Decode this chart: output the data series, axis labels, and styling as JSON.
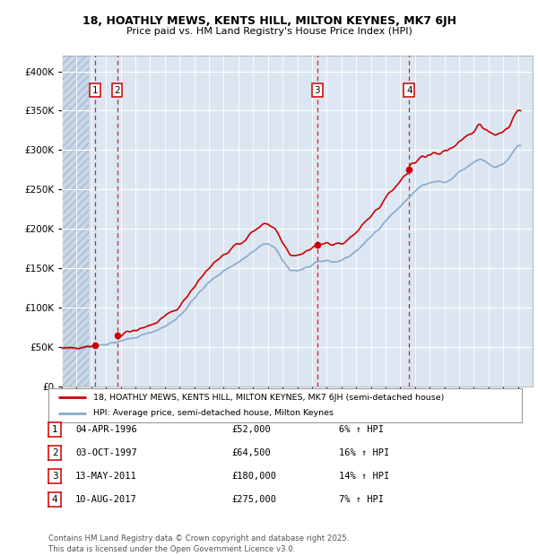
{
  "title1": "18, HOATHLY MEWS, KENTS HILL, MILTON KEYNES, MK7 6JH",
  "title2": "Price paid vs. HM Land Registry's House Price Index (HPI)",
  "ylim": [
    0,
    420000
  ],
  "yticks": [
    0,
    50000,
    100000,
    150000,
    200000,
    250000,
    300000,
    350000,
    400000
  ],
  "ytick_labels": [
    "£0",
    "£50K",
    "£100K",
    "£150K",
    "£200K",
    "£250K",
    "£300K",
    "£350K",
    "£400K"
  ],
  "background_color": "#ffffff",
  "plot_bg_color": "#dce6f1",
  "grid_color": "#ffffff",
  "transactions": [
    {
      "num": 1,
      "date": "04-APR-1996",
      "price": 52000,
      "pct": "6%",
      "year": 1996.26
    },
    {
      "num": 2,
      "date": "03-OCT-1997",
      "price": 64500,
      "pct": "16%",
      "year": 1997.75
    },
    {
      "num": 3,
      "date": "13-MAY-2011",
      "price": 180000,
      "pct": "14%",
      "year": 2011.36
    },
    {
      "num": 4,
      "date": "10-AUG-2017",
      "price": 275000,
      "pct": "7%",
      "year": 2017.61
    }
  ],
  "legend_line1": "18, HOATHLY MEWS, KENTS HILL, MILTON KEYNES, MK7 6JH (semi-detached house)",
  "legend_line2": "HPI: Average price, semi-detached house, Milton Keynes",
  "footer": "Contains HM Land Registry data © Crown copyright and database right 2025.\nThis data is licensed under the Open Government Licence v3.0.",
  "line_color": "#cc0000",
  "hpi_color": "#88aacc",
  "marker_color": "#cc0000",
  "dashed_color": "#cc0000",
  "shade_color": "#dde8f4",
  "xmin": 1994,
  "xmax": 2026
}
